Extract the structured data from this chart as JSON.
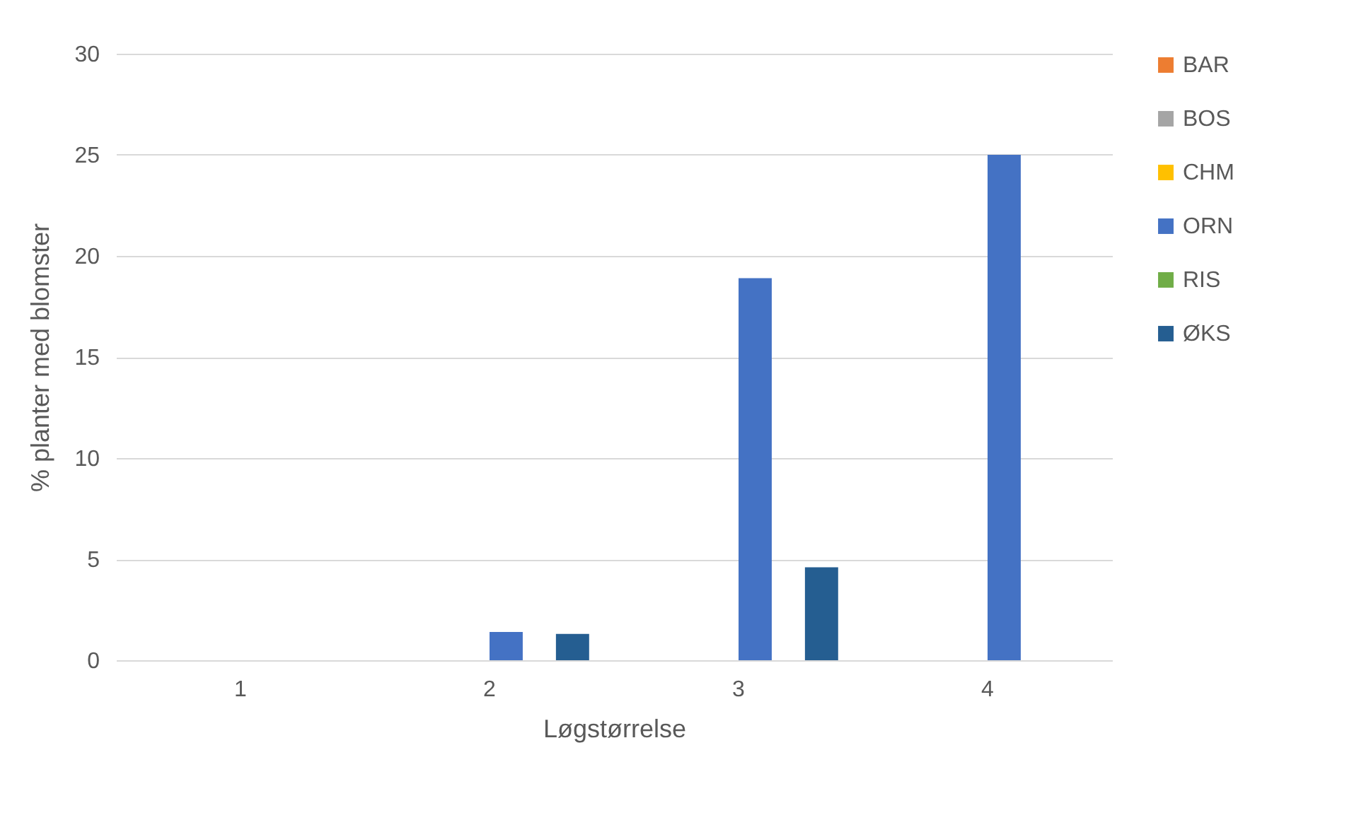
{
  "chart_data": {
    "type": "bar",
    "xlabel": "Løgstørrelse",
    "ylabel": "% planter med blomster",
    "categories": [
      "1",
      "2",
      "3",
      "4"
    ],
    "series": [
      {
        "name": "BAR",
        "color": "#ed7d31",
        "values": [
          0,
          0,
          0,
          0
        ]
      },
      {
        "name": "BOS",
        "color": "#a5a5a5",
        "values": [
          0,
          0,
          0,
          0
        ]
      },
      {
        "name": "CHM",
        "color": "#ffc000",
        "values": [
          0,
          0,
          0,
          0
        ]
      },
      {
        "name": "ORN",
        "color": "#4472c4",
        "values": [
          0,
          1.4,
          18.9,
          25
        ]
      },
      {
        "name": "RIS",
        "color": "#70ad47",
        "values": [
          0,
          0,
          0,
          0
        ]
      },
      {
        "name": "ØKS",
        "color": "#255e91",
        "values": [
          0,
          1.3,
          4.6,
          0
        ]
      }
    ],
    "ylim": [
      0,
      30
    ],
    "yticks": [
      0,
      5,
      10,
      15,
      20,
      25,
      30
    ],
    "grid": "y",
    "legend": "right"
  }
}
